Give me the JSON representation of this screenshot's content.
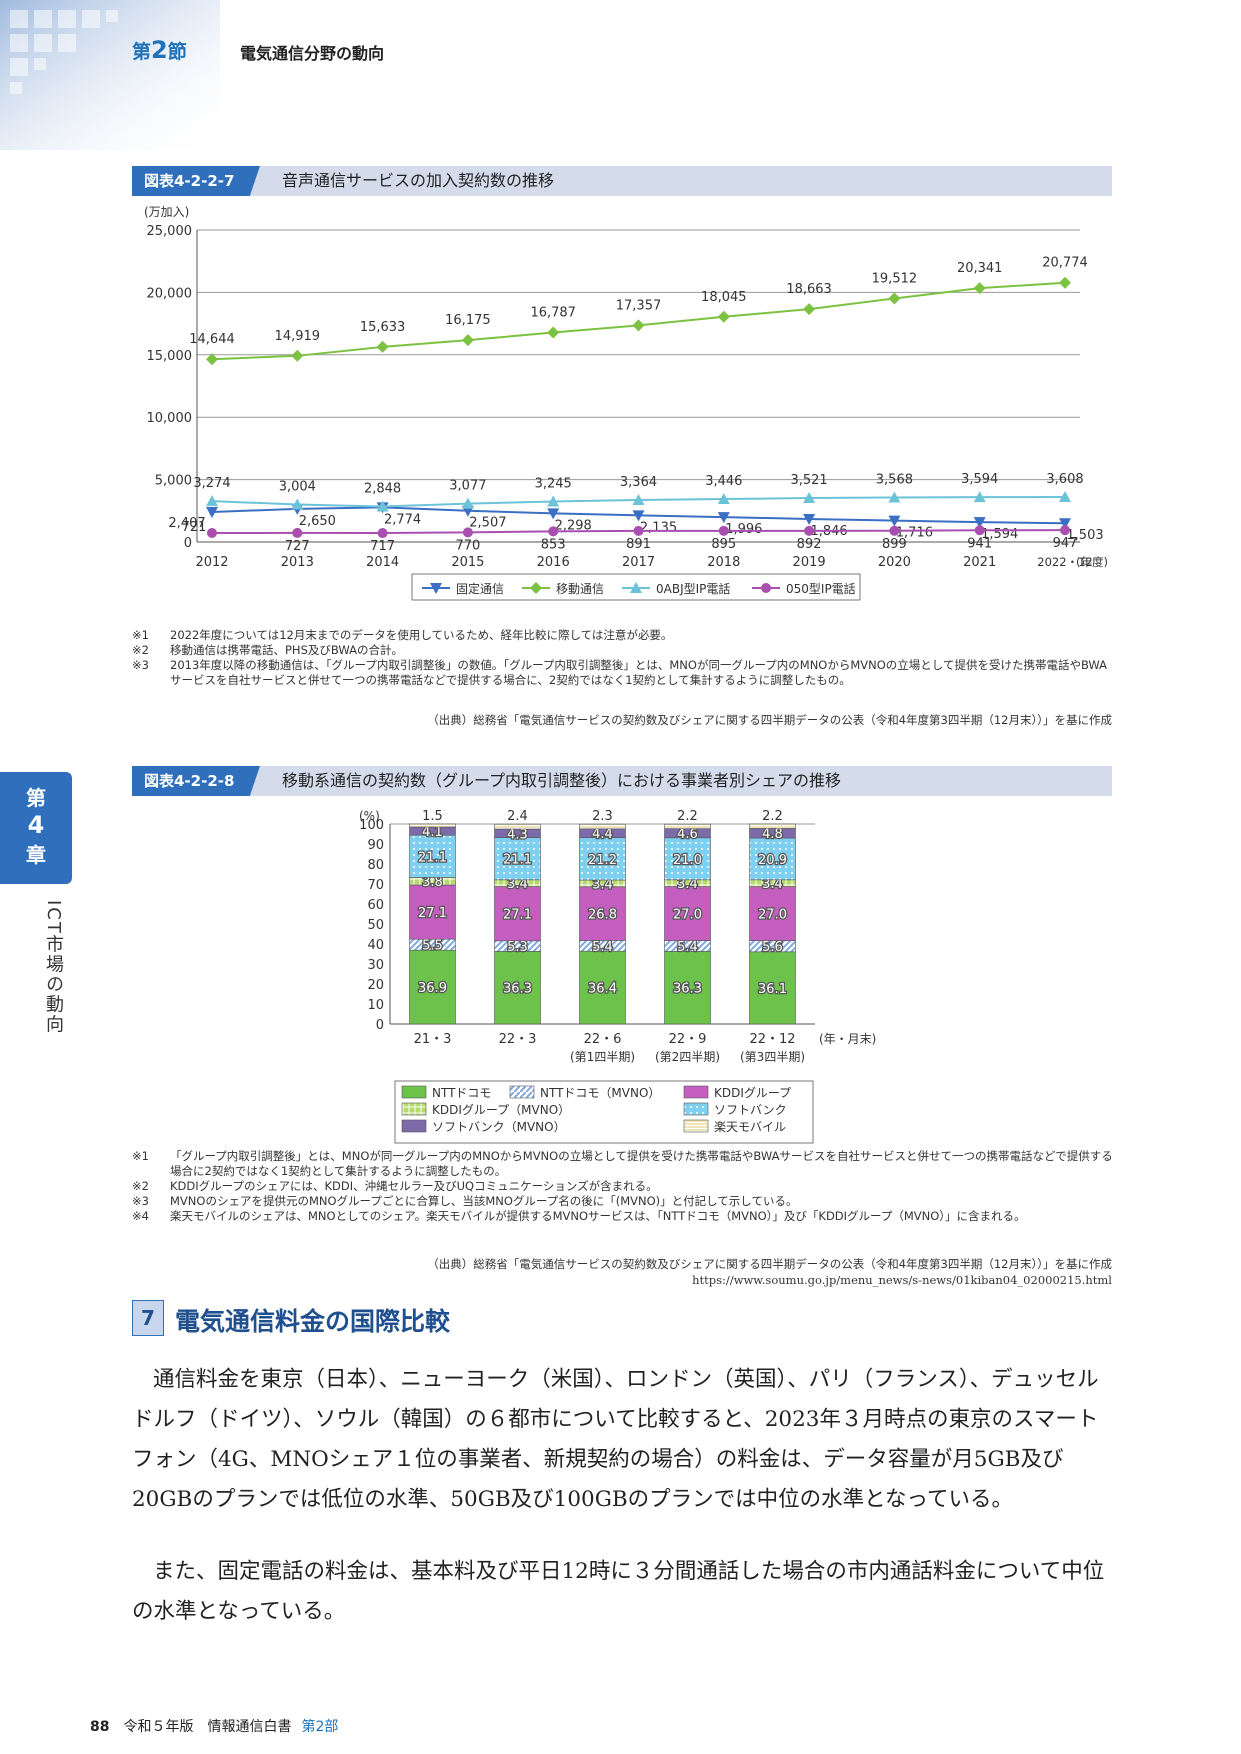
{
  "header": {
    "section_prefix": "第",
    "section_num": "2",
    "section_suffix": "節",
    "title": "電気通信分野の動向"
  },
  "fig1": {
    "tag": "図表4-2-2-7",
    "title": "音声通信サービスの加入契約数の推移",
    "notes": [
      {
        "mark": "※1",
        "text": "2022年度については12月末までのデータを使用しているため、経年比較に際しては注意が必要。"
      },
      {
        "mark": "※2",
        "text": "移動通信は携帯電話、PHS及びBWAの合計。"
      },
      {
        "mark": "※3",
        "text": "2013年度以降の移動通信は、「グループ内取引調整後」の数値。「グループ内取引調整後」とは、MNOが同一グループ内のMNOからMVNOの立場として提供を受けた携帯電話やBWAサービスを自社サービスと併せて一つの携帯電話などで提供する場合に、2契約ではなく1契約として集計するように調整したもの。"
      }
    ],
    "source": "（出典）総務省「電気通信サービスの契約数及びシェアに関する四半期データの公表（令和4年度第3四半期（12月末））」を基に作成"
  },
  "fig2": {
    "tag": "図表4-2-2-8",
    "title": "移動系通信の契約数（グループ内取引調整後）における事業者別シェアの推移",
    "notes": [
      {
        "mark": "※1",
        "text": "「グループ内取引調整後」とは、MNOが同一グループ内のMNOからMVNOの立場として提供を受けた携帯電話やBWAサービスを自社サービスと併せて一つの携帯電話などで提供する場合に2契約ではなく1契約として集計するように調整したもの。"
      },
      {
        "mark": "※2",
        "text": "KDDIグループのシェアには、KDDI、沖縄セルラー及びUQコミュニケーションズが含まれる。"
      },
      {
        "mark": "※3",
        "text": "MVNOのシェアを提供元のMNOグループごとに合算し、当該MNOグループ名の後に「(MVNO)」と付記して示している。"
      },
      {
        "mark": "※4",
        "text": "楽天モバイルのシェアは、MNOとしてのシェア。楽天モバイルが提供するMVNOサービスは、「NTTドコモ（MVNO）」及び「KDDIグループ（MVNO）」に含まれる。"
      }
    ],
    "source": "（出典）総務省「電気通信サービスの契約数及びシェアに関する四半期データの公表（令和4年度第3四半期（12月末））」を基に作成",
    "url": "https://www.soumu.go.jp/menu_news/s-news/01kiban04_02000215.html"
  },
  "chart_data": [
    {
      "type": "line",
      "unit_label": "(万加入)",
      "x_unit_label": "(年度)",
      "categories": [
        "2012",
        "2013",
        "2014",
        "2015",
        "2016",
        "2017",
        "2018",
        "2019",
        "2020",
        "2021",
        "2022・12"
      ],
      "ylim": [
        0,
        25000
      ],
      "yticks": [
        "0",
        "5,000",
        "10,000",
        "15,000",
        "20,000",
        "25,000"
      ],
      "grid": true,
      "legend_position": "bottom",
      "series": [
        {
          "name": "固定通信",
          "color": "#3a6fc4",
          "marker": "triangle-down",
          "values": [
            2407,
            2650,
            2774,
            2507,
            2298,
            2135,
            1996,
            1846,
            1716,
            1594,
            1503
          ],
          "labels": [
            "2,407",
            "2,650",
            "2,774",
            "2,507",
            "2,298",
            "2,135",
            "1,996",
            "1,846",
            "1,716",
            "1,594",
            "1,503"
          ]
        },
        {
          "name": "移動通信",
          "color": "#7cc242",
          "marker": "diamond",
          "values": [
            14644,
            14919,
            15633,
            16175,
            16787,
            17357,
            18045,
            18663,
            19512,
            20341,
            20774
          ],
          "labels": [
            "14,644",
            "14,919",
            "15,633",
            "16,175",
            "16,787",
            "17,357",
            "18,045",
            "18,663",
            "19,512",
            "20,341",
            "20,774"
          ]
        },
        {
          "name": "0ABJ型IP電話",
          "color": "#6cc3d8",
          "marker": "triangle-up",
          "values": [
            3274,
            3004,
            2848,
            3077,
            3245,
            3364,
            3446,
            3521,
            3568,
            3594,
            3608
          ],
          "labels": [
            "3,274",
            "3,004",
            "2,848",
            "3,077",
            "3,245",
            "3,364",
            "3,446",
            "3,521",
            "3,568",
            "3,594",
            "3,608"
          ]
        },
        {
          "name": "050型IP電話",
          "color": "#a84fb0",
          "marker": "circle",
          "values": [
            721,
            727,
            717,
            770,
            853,
            891,
            895,
            892,
            899,
            941,
            947
          ],
          "labels": [
            "721",
            "727",
            "717",
            "770",
            "853",
            "891",
            "895",
            "892",
            "899",
            "941",
            "947"
          ]
        }
      ]
    },
    {
      "type": "bar",
      "stacked": true,
      "unit_label": "(%)",
      "x_unit_label": "(年・月末)",
      "categories": [
        "21・3",
        "22・3",
        "22・6",
        "22・9",
        "22・12"
      ],
      "subcategories": [
        "",
        "",
        "(第1四半期)",
        "(第2四半期)",
        "(第3四半期)"
      ],
      "ylim": [
        0,
        100
      ],
      "yticks": [
        "0",
        "10",
        "20",
        "30",
        "40",
        "50",
        "60",
        "70",
        "80",
        "90",
        "100"
      ],
      "legend_position": "bottom",
      "series": [
        {
          "name": "NTTドコモ",
          "color": "#6cc24a",
          "pattern": "solid",
          "values": [
            36.9,
            36.3,
            36.4,
            36.3,
            36.1
          ],
          "labels": [
            "36.9",
            "36.3",
            "36.4",
            "36.3",
            "36.1"
          ]
        },
        {
          "name": "NTTドコモ（MVNO）",
          "color": "#7fa8e0",
          "pattern": "diag",
          "values": [
            5.5,
            5.3,
            5.4,
            5.4,
            5.6
          ],
          "labels": [
            "5.5",
            "5.3",
            "5.4",
            "5.4",
            "5.6"
          ]
        },
        {
          "name": "KDDIグループ",
          "color": "#c45fc0",
          "pattern": "solid",
          "values": [
            27.1,
            27.1,
            26.8,
            27.0,
            27.0
          ],
          "labels": [
            "27.1",
            "27.1",
            "26.8",
            "27.0",
            "27.0"
          ]
        },
        {
          "name": "KDDIグループ（MVNO）",
          "color": "#b5d96a",
          "pattern": "grid",
          "values": [
            3.8,
            3.4,
            3.4,
            3.4,
            3.4
          ],
          "labels": [
            "3.8",
            "3.4",
            "3.4",
            "3.4",
            "3.4"
          ]
        },
        {
          "name": "ソフトバンク",
          "color": "#7fd0f0",
          "pattern": "dots",
          "values": [
            21.1,
            21.1,
            21.2,
            21.0,
            20.9
          ],
          "labels": [
            "21.1",
            "21.1",
            "21.2",
            "21.0",
            "20.9"
          ]
        },
        {
          "name": "ソフトバンク（MVNO）",
          "color": "#7d6aa8",
          "pattern": "solid",
          "values": [
            4.1,
            4.3,
            4.4,
            4.6,
            4.8
          ],
          "labels": [
            "4.1",
            "4.3",
            "4.4",
            "4.6",
            "4.8"
          ]
        },
        {
          "name": "楽天モバイル",
          "color": "#e8dca0",
          "pattern": "hlines",
          "values": [
            1.5,
            2.4,
            2.3,
            2.2,
            2.2
          ],
          "labels": [
            "1.5",
            "2.4",
            "2.3",
            "2.2",
            "2.2"
          ]
        }
      ]
    }
  ],
  "chapter": {
    "c1": "第",
    "c2": "4",
    "c3": "章",
    "side": "ICT市場の動向"
  },
  "section7": {
    "num": "7",
    "heading": "電気通信料金の国際比較",
    "para1": "通信料金を東京（日本）、ニューヨーク（米国）、ロンドン（英国）、パリ（フランス）、デュッセルドルフ（ドイツ）、ソウル（韓国）の６都市について比較すると、2023年３月時点の東京のスマートフォン（4G、MNOシェア１位の事業者、新規契約の場合）の料金は、データ容量が月5GB及び20GBのプランでは低位の水準、50GB及び100GBのプランでは中位の水準となっている。",
    "para2": "また、固定電話の料金は、基本料及び平日12時に３分間通話した場合の市内通話料金について中位の水準となっている。"
  },
  "footer": {
    "page": "88",
    "book": "令和５年版　情報通信白書",
    "part": "第2部"
  }
}
